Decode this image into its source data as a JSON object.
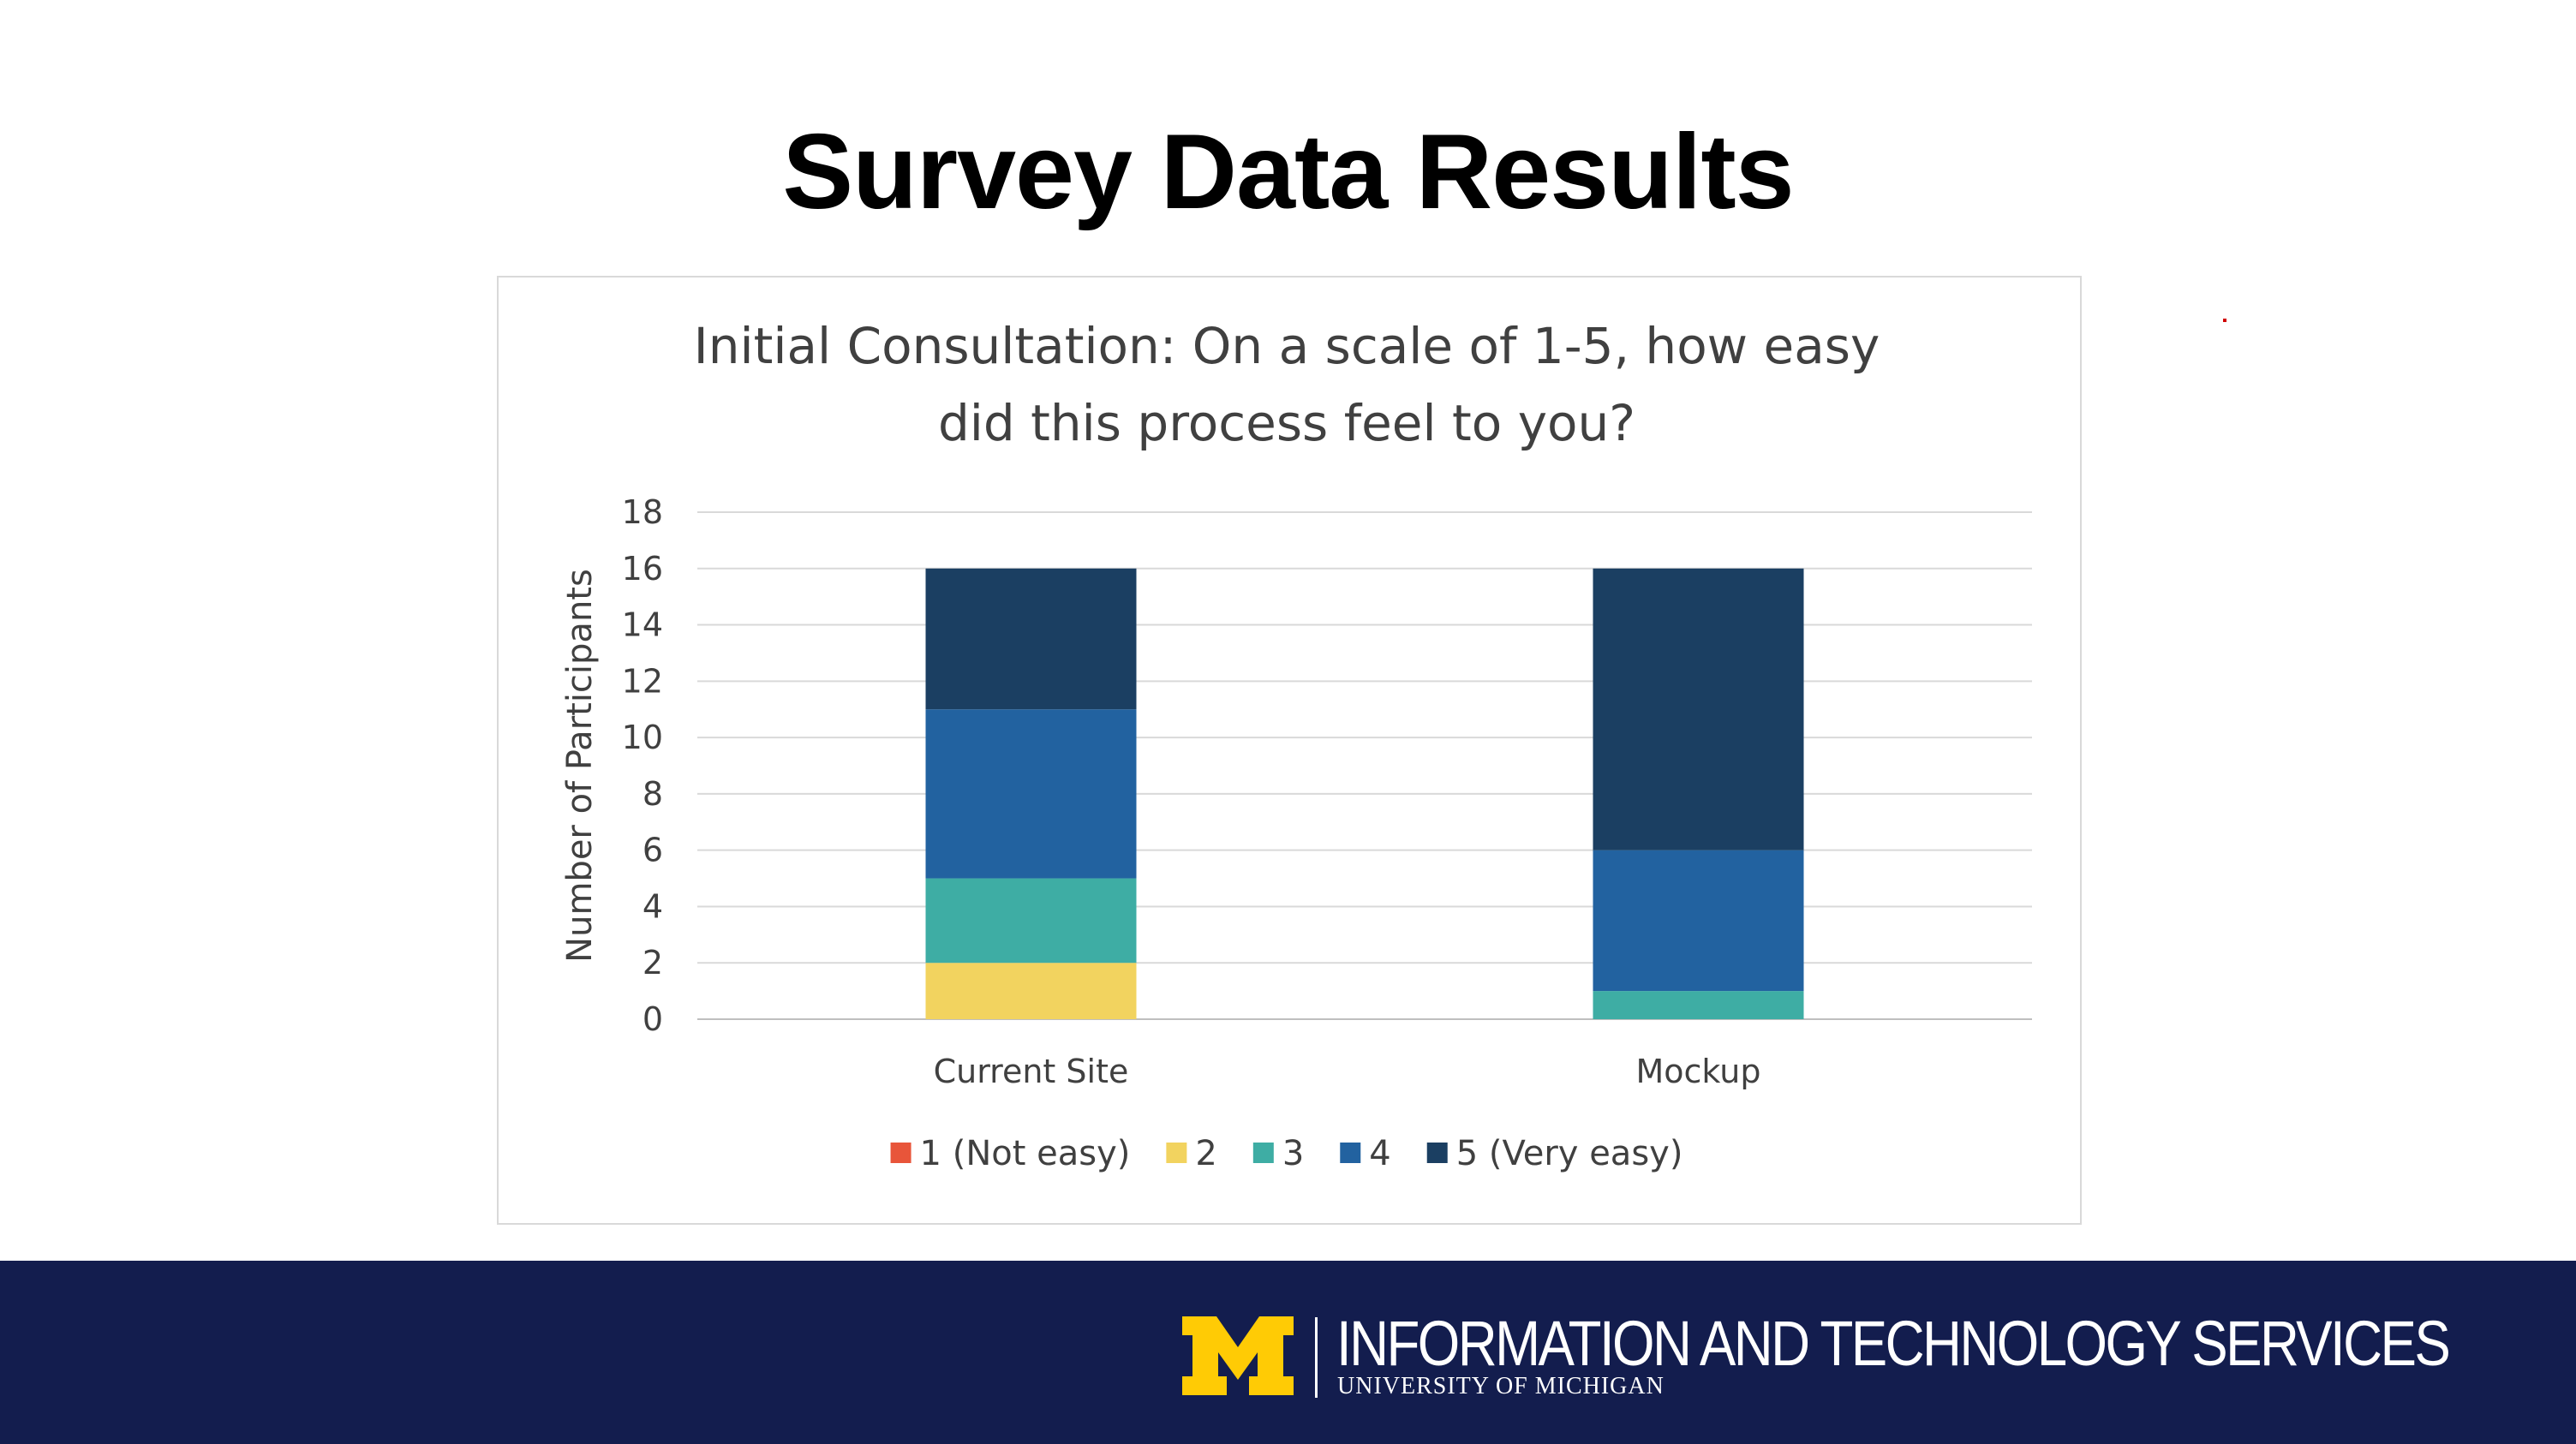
{
  "slide": {
    "title": "Survey Data Results"
  },
  "colors": {
    "rating_1": "#e8553a",
    "rating_2": "#f2d35f",
    "rating_3": "#3eada4",
    "rating_4": "#2262a0",
    "rating_5": "#1b3f62",
    "footer_bg": "#131d4e",
    "maize": "#ffcb05"
  },
  "chart_data": {
    "type": "bar",
    "stacked": true,
    "title_lines": [
      "Initial Consultation: On a scale of 1-5, how easy",
      "did this process feel to you?"
    ],
    "ylabel": "Number of Participants",
    "xlabel": "",
    "ylim": [
      0,
      18
    ],
    "yticks": [
      0,
      2,
      4,
      6,
      8,
      10,
      12,
      14,
      16,
      18
    ],
    "grid": true,
    "legend_position": "bottom",
    "categories": [
      "Current Site",
      "Mockup"
    ],
    "series": [
      {
        "name": "1 (Not easy)",
        "values": [
          0,
          0
        ]
      },
      {
        "name": "2",
        "values": [
          2,
          0
        ]
      },
      {
        "name": "3",
        "values": [
          3,
          1
        ]
      },
      {
        "name": "4",
        "values": [
          6,
          5
        ]
      },
      {
        "name": "5 (Very easy)",
        "values": [
          5,
          10
        ]
      }
    ]
  },
  "footer": {
    "unit_name": "INFORMATION AND TECHNOLOGY SERVICES",
    "university": "UNIVERSITY OF MICHIGAN",
    "logo_icon": "block-m-logo-icon"
  }
}
